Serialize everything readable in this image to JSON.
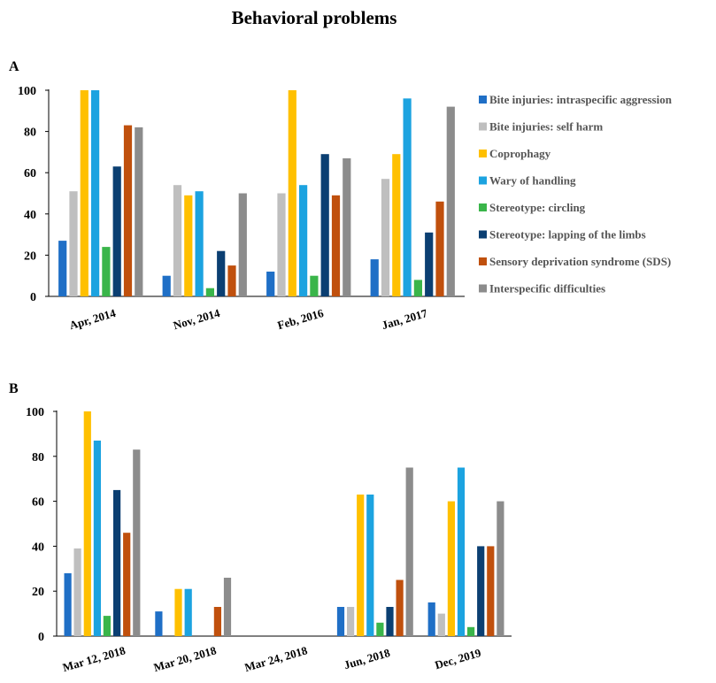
{
  "title": "Behavioral problems",
  "legend": [
    {
      "label": "Bite injuries: intraspecific aggression",
      "color": "#1f6fc6"
    },
    {
      "label": "Bite injuries: self harm",
      "color": "#bfbfbf"
    },
    {
      "label": "Coprophagy",
      "color": "#ffc000"
    },
    {
      "label": "Wary of handling",
      "color": "#1ca3e0"
    },
    {
      "label": "Stereotype: circling",
      "color": "#3ab54a"
    },
    {
      "label": "Stereotype: lapping of the limbs",
      "color": "#0b3f72"
    },
    {
      "label": "Sensory deprivation syndrome (SDS)",
      "color": "#c0500d"
    },
    {
      "label": "Interspecific difficulties",
      "color": "#8c8c8c"
    }
  ],
  "chart_data": [
    {
      "panel": "A",
      "type": "bar",
      "categories": [
        "Apr, 2014",
        "Nov, 2014",
        "Feb, 2016",
        "Jan, 2017"
      ],
      "ylim": [
        0,
        100
      ],
      "yticks": [
        0,
        20,
        40,
        60,
        80,
        100
      ],
      "grid": false,
      "legend_position": "right",
      "series": [
        {
          "name": "Bite injuries: intraspecific aggression",
          "values": [
            27,
            10,
            12,
            18
          ]
        },
        {
          "name": "Bite injuries: self harm",
          "values": [
            51,
            54,
            50,
            57
          ]
        },
        {
          "name": "Coprophagy",
          "values": [
            100,
            49,
            100,
            69
          ]
        },
        {
          "name": "Wary of handling",
          "values": [
            100,
            51,
            54,
            96
          ]
        },
        {
          "name": "Stereotype: circling",
          "values": [
            24,
            4,
            10,
            8
          ]
        },
        {
          "name": "Stereotype: lapping of the limbs",
          "values": [
            63,
            22,
            69,
            31
          ]
        },
        {
          "name": "Sensory deprivation syndrome (SDS)",
          "values": [
            83,
            15,
            49,
            46
          ]
        },
        {
          "name": "Interspecific difficulties",
          "values": [
            82,
            50,
            67,
            92
          ]
        }
      ]
    },
    {
      "panel": "B",
      "type": "bar",
      "categories": [
        "Mar 12, 2018",
        "Mar 20, 2018",
        "Mar 24, 2018",
        "Jun, 2018",
        "Dec, 2019"
      ],
      "ylim": [
        0,
        100
      ],
      "yticks": [
        0,
        20,
        40,
        60,
        80,
        100
      ],
      "grid": false,
      "series": [
        {
          "name": "Bite injuries: intraspecific aggression",
          "values": [
            28,
            11,
            0,
            13,
            15
          ]
        },
        {
          "name": "Bite injuries: self harm",
          "values": [
            39,
            0,
            0,
            13,
            10
          ]
        },
        {
          "name": "Coprophagy",
          "values": [
            100,
            21,
            0,
            63,
            60
          ]
        },
        {
          "name": "Wary of handling",
          "values": [
            87,
            21,
            0,
            63,
            75
          ]
        },
        {
          "name": "Stereotype: circling",
          "values": [
            9,
            0,
            0,
            6,
            4
          ]
        },
        {
          "name": "Stereotype: lapping of the limbs",
          "values": [
            65,
            0,
            0,
            13,
            40
          ]
        },
        {
          "name": "Sensory deprivation syndrome (SDS)",
          "values": [
            46,
            13,
            0,
            25,
            40
          ]
        },
        {
          "name": "Interspecific difficulties",
          "values": [
            83,
            26,
            0,
            75,
            60
          ]
        }
      ]
    }
  ]
}
